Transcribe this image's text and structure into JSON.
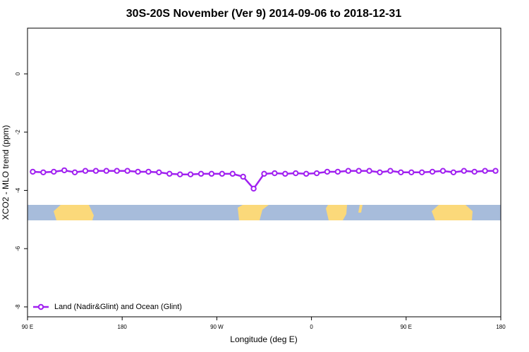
{
  "chart_data": {
    "type": "line",
    "title": "30S-20S November (Ver 9)   2014-09-06 to 2018-12-31",
    "x_label": "Longitude (deg E)",
    "y_label": "XCO2 - MLO trend (ppm)",
    "x": [
      95,
      105,
      115,
      125,
      135,
      145,
      155,
      165,
      175,
      185,
      195,
      205,
      215,
      225,
      235,
      245,
      255,
      265,
      275,
      285,
      295,
      305,
      315,
      325,
      335,
      345,
      355,
      365,
      375,
      385,
      395,
      405,
      415,
      425,
      435,
      445,
      455,
      465,
      475,
      485,
      495,
      505,
      515,
      525,
      535
    ],
    "series": [
      {
        "name": "Land (Nadir&Glint) and Ocean (Glint)",
        "color": "#a020f0",
        "values": [
          -3.36,
          -3.38,
          -3.36,
          -3.31,
          -3.38,
          -3.33,
          -3.33,
          -3.33,
          -3.33,
          -3.33,
          -3.36,
          -3.36,
          -3.38,
          -3.43,
          -3.45,
          -3.45,
          -3.43,
          -3.43,
          -3.43,
          -3.43,
          -3.53,
          -3.94,
          -3.43,
          -3.41,
          -3.43,
          -3.41,
          -3.43,
          -3.41,
          -3.36,
          -3.36,
          -3.33,
          -3.33,
          -3.33,
          -3.38,
          -3.33,
          -3.38,
          -3.38,
          -3.38,
          -3.36,
          -3.33,
          -3.38,
          -3.33,
          -3.36,
          -3.33,
          -3.33
        ]
      }
    ],
    "xlim": [
      90,
      540
    ],
    "xticks": [
      {
        "value": 90,
        "label": "90 E"
      },
      {
        "value": 180,
        "label": "180"
      },
      {
        "value": 270,
        "label": "90 W"
      },
      {
        "value": 360,
        "label": "0"
      },
      {
        "value": 450,
        "label": "90 E"
      },
      {
        "value": 540,
        "label": "180"
      }
    ],
    "ylim": [
      -8.34,
      1.57
    ],
    "yticks": [
      0,
      -2,
      -4,
      -6,
      -8
    ],
    "legend": "bottom-left"
  }
}
